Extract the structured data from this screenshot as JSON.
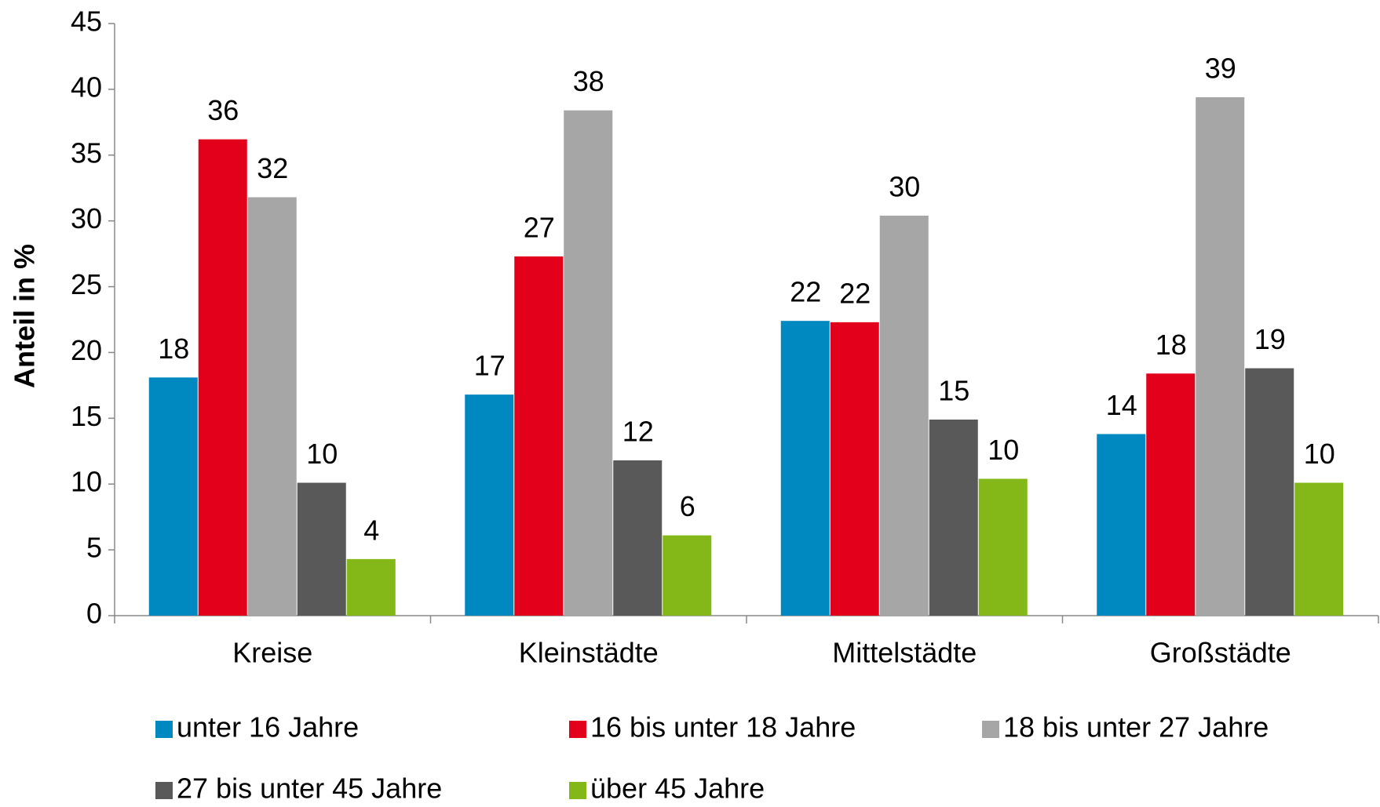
{
  "chart_data": {
    "type": "bar",
    "ylabel": "Anteil in %",
    "categories": [
      "Kreise",
      "Kleinstädte",
      "Mittelstädte",
      "Großstädte"
    ],
    "series": [
      {
        "name": "unter 16 Jahre",
        "color": "#0088c0",
        "values": [
          18.1,
          16.8,
          22.4,
          13.8
        ],
        "value_labels": [
          "18",
          "17",
          "22",
          "14"
        ]
      },
      {
        "name": "16 bis unter 18 Jahre",
        "color": "#e2001a",
        "values": [
          36.2,
          27.3,
          22.3,
          18.4
        ],
        "value_labels": [
          "36",
          "27",
          "22",
          "18"
        ]
      },
      {
        "name": "18 bis unter 27 Jahre",
        "color": "#a6a6a6",
        "values": [
          31.8,
          38.4,
          30.4,
          39.4
        ],
        "value_labels": [
          "32",
          "38",
          "30",
          "39"
        ]
      },
      {
        "name": "27 bis unter 45 Jahre",
        "color": "#595959",
        "values": [
          10.1,
          11.8,
          14.9,
          18.8
        ],
        "value_labels": [
          "10",
          "12",
          "15",
          "19"
        ]
      },
      {
        "name": "über 45 Jahre",
        "color": "#84b819",
        "values": [
          4.3,
          6.1,
          10.4,
          10.1
        ],
        "value_labels": [
          "4",
          "6",
          "10",
          "10"
        ]
      }
    ],
    "ylim": [
      0,
      45
    ],
    "yticks": [
      0,
      5,
      10,
      15,
      20,
      25,
      30,
      35,
      40,
      45
    ],
    "legend": "bottom"
  }
}
